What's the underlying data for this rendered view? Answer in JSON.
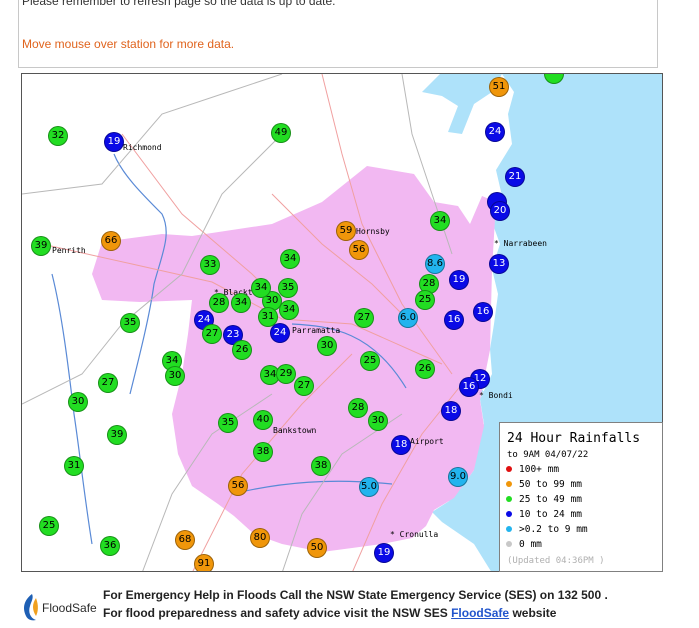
{
  "notice": {
    "refresh_text": "Please remember to refresh page so the data is up to date.",
    "hint_text": "Move mouse over station for more data."
  },
  "colors": {
    "land": "#ffffff",
    "sea": "#aee2fa",
    "urban": "#f2b8f2",
    "roads": "#f0a0a0",
    "rivers": "#5a8ad6",
    "boundaries": "#b8b8b8",
    "cat_100_plus": "#e01010",
    "cat_50_99": "#f0960a",
    "cat_25_49": "#22dd22",
    "cat_10_24": "#0a0ae6",
    "cat_0_2_9": "#22b4ee",
    "cat_0": "#c8c8c8"
  },
  "places": [
    {
      "name": "Richmond",
      "label": "Richmond"
    },
    {
      "name": "Penrith",
      "label": "Penrith"
    },
    {
      "name": "Hornsby",
      "label": "Hornsby"
    },
    {
      "name": "Narrabeen",
      "label": "* Narrabeen"
    },
    {
      "name": "Blacktown",
      "label": "* Blackt"
    },
    {
      "name": "Parramatta",
      "label": "Parramatta"
    },
    {
      "name": "Bondi",
      "label": "* Bondi"
    },
    {
      "name": "Bankstown",
      "label": "Bankstown"
    },
    {
      "name": "Airport",
      "label": "Airport"
    },
    {
      "name": "Cronulla",
      "label": "* Cronulla"
    }
  ],
  "stations": [
    {
      "value": "51",
      "category": "50-99"
    },
    {
      "value": "",
      "category": "25-49"
    },
    {
      "value": "32",
      "category": "25-49"
    },
    {
      "value": "19",
      "category": "10-24"
    },
    {
      "value": "49",
      "category": "25-49"
    },
    {
      "value": "24",
      "category": "10-24"
    },
    {
      "value": "21",
      "category": "10-24"
    },
    {
      "value": "",
      "category": "10-24"
    },
    {
      "value": "20",
      "category": "10-24"
    },
    {
      "value": "34",
      "category": "25-49"
    },
    {
      "value": "59",
      "category": "50-99"
    },
    {
      "value": "56",
      "category": "50-99"
    },
    {
      "value": "39",
      "category": "25-49"
    },
    {
      "value": "66",
      "category": "50-99"
    },
    {
      "value": "33",
      "category": "25-49"
    },
    {
      "value": "34",
      "category": "25-49"
    },
    {
      "value": "8.6",
      "category": "0.2-9"
    },
    {
      "value": "19",
      "category": "10-24"
    },
    {
      "value": "13",
      "category": "10-24"
    },
    {
      "value": "28",
      "category": "25-49"
    },
    {
      "value": "34",
      "category": "25-49"
    },
    {
      "value": "35",
      "category": "25-49"
    },
    {
      "value": "30",
      "category": "25-49"
    },
    {
      "value": "28",
      "category": "25-49"
    },
    {
      "value": "34",
      "category": "25-49"
    },
    {
      "value": "34",
      "category": "25-49"
    },
    {
      "value": "31",
      "category": "25-49"
    },
    {
      "value": "25",
      "category": "25-49"
    },
    {
      "value": "6.0",
      "category": "0.2-9"
    },
    {
      "value": "16",
      "category": "10-24"
    },
    {
      "value": "16",
      "category": "10-24"
    },
    {
      "value": "35",
      "category": "25-49"
    },
    {
      "value": "24",
      "category": "10-24"
    },
    {
      "value": "27",
      "category": "25-49"
    },
    {
      "value": "23",
      "category": "10-24"
    },
    {
      "value": "24",
      "category": "10-24"
    },
    {
      "value": "27",
      "category": "25-49"
    },
    {
      "value": "26",
      "category": "25-49"
    },
    {
      "value": "30",
      "category": "25-49"
    },
    {
      "value": "34",
      "category": "25-49"
    },
    {
      "value": "30",
      "category": "25-49"
    },
    {
      "value": "25",
      "category": "25-49"
    },
    {
      "value": "26",
      "category": "25-49"
    },
    {
      "value": "34",
      "category": "25-49"
    },
    {
      "value": "29",
      "category": "25-49"
    },
    {
      "value": "27",
      "category": "25-49"
    },
    {
      "value": "27",
      "category": "25-49"
    },
    {
      "value": "12",
      "category": "10-24"
    },
    {
      "value": "16",
      "category": "10-24"
    },
    {
      "value": "30",
      "category": "25-49"
    },
    {
      "value": "28",
      "category": "25-49"
    },
    {
      "value": "30",
      "category": "25-49"
    },
    {
      "value": "18",
      "category": "10-24"
    },
    {
      "value": "35",
      "category": "25-49"
    },
    {
      "value": "40",
      "category": "25-49"
    },
    {
      "value": "39",
      "category": "25-49"
    },
    {
      "value": "18",
      "category": "10-24"
    },
    {
      "value": "38",
      "category": "25-49"
    },
    {
      "value": "38",
      "category": "25-49"
    },
    {
      "value": "31",
      "category": "25-49"
    },
    {
      "value": "56",
      "category": "50-99"
    },
    {
      "value": "5.0",
      "category": "0.2-9"
    },
    {
      "value": "9.0",
      "category": "0.2-9"
    },
    {
      "value": "25",
      "category": "25-49"
    },
    {
      "value": "68",
      "category": "50-99"
    },
    {
      "value": "80",
      "category": "50-99"
    },
    {
      "value": "50",
      "category": "50-99"
    },
    {
      "value": "36",
      "category": "25-49"
    },
    {
      "value": "91",
      "category": "50-99"
    },
    {
      "value": "19",
      "category": "10-24"
    }
  ],
  "legend": {
    "title": "24 Hour Rainfalls",
    "subtitle": "to 9AM 04/07/22",
    "rows": [
      {
        "label": "100+ mm",
        "color": "#e01010"
      },
      {
        "label": "50  to 99 mm",
        "color": "#f0960a"
      },
      {
        "label": "25  to 49 mm",
        "color": "#22dd22"
      },
      {
        "label": "10  to 24 mm",
        "color": "#0a0ae6"
      },
      {
        "label": ">0.2 to 9 mm",
        "color": "#22b4ee"
      },
      {
        "label": "0  mm",
        "color": "#c8c8c8"
      }
    ],
    "updated": "(Updated 04:36PM  )"
  },
  "footer": {
    "logo_text": "FloodSafe",
    "line1": "For Emergency Help in Floods Call the NSW State Emergency Service (SES) on 132 500 .",
    "line2_prefix": "For flood preparedness and safety advice visit the NSW SES ",
    "link_text": "FloodSafe",
    "line2_suffix": " website"
  }
}
